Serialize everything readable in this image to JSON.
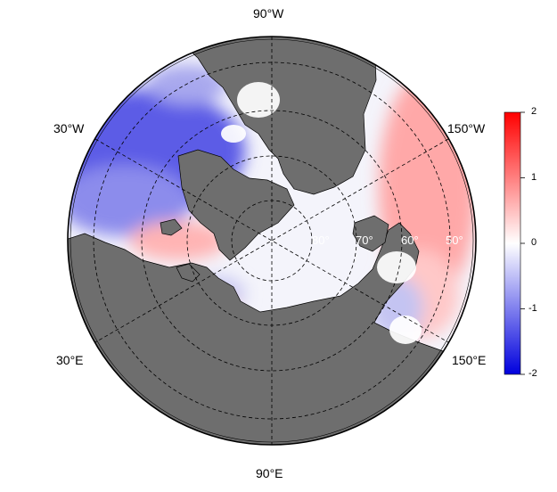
{
  "longitude_labels": {
    "top": "90°W",
    "bottom": "90°E",
    "upper_left": "30°W",
    "lower_left": "30°E",
    "upper_right": "150°W",
    "lower_right": "150°E"
  },
  "latitude_labels": [
    "80°",
    "70°",
    "60°",
    "50°"
  ],
  "colorbar": {
    "ticks": [
      "2",
      "1",
      "0",
      "-1",
      "-2"
    ],
    "min": -2,
    "max": 2,
    "colors": {
      "max": "#ff0000",
      "mid": "#ffffff",
      "min": "#0000dd"
    }
  },
  "colors": {
    "land": "#6e6e6e",
    "coast": "#000000",
    "grid": "#000000"
  }
}
